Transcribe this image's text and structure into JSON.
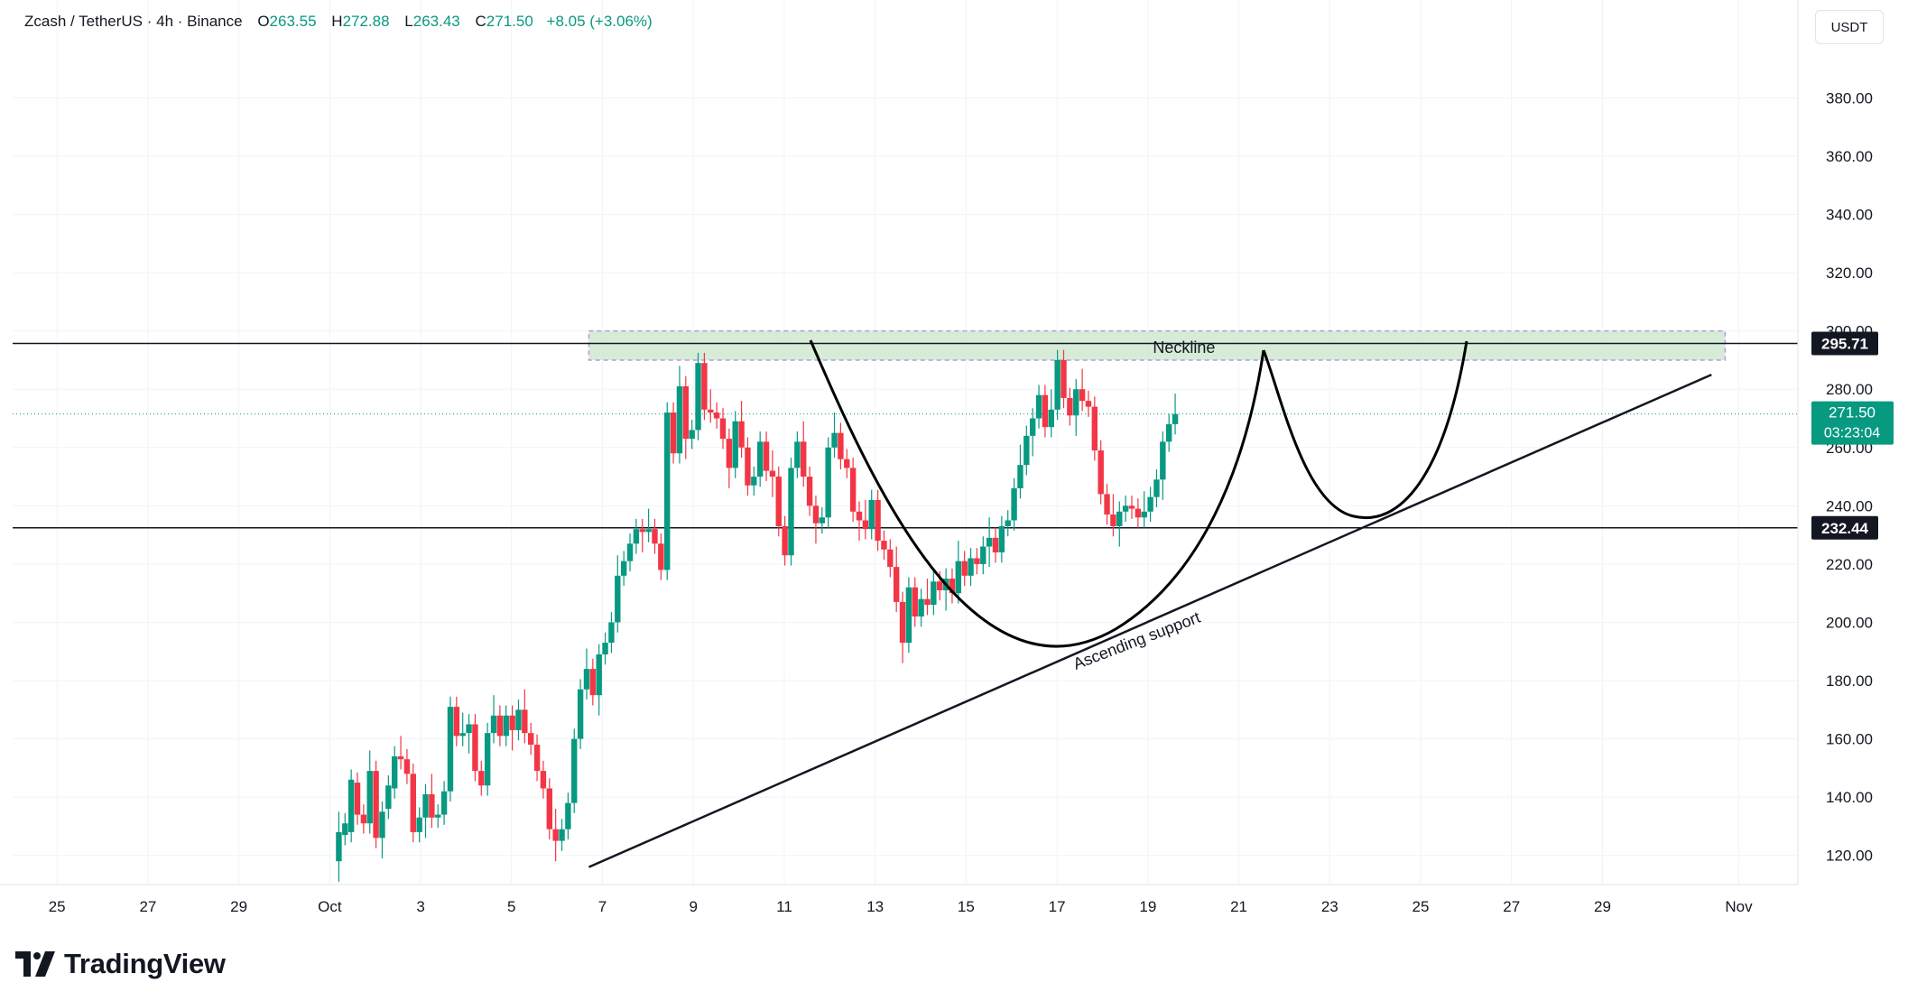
{
  "header": {
    "symbol": "Zcash / TetherUS · 4h · Binance",
    "open_label": "O",
    "open_value": "263.55",
    "high_label": "H",
    "high_value": "272.88",
    "low_label": "L",
    "low_value": "263.43",
    "close_label": "C",
    "close_value": "271.50",
    "change": "+8.05 (+3.06%)"
  },
  "currency_button": "USDT",
  "brand": {
    "name": "TradingView",
    "icon": "tradingview-logo-icon"
  },
  "colors": {
    "up": "#089981",
    "down": "#f23645",
    "zone_fill": "#c8e6c9",
    "zone_border": "#b39ddb",
    "line": "#131722"
  },
  "chart_data": {
    "type": "candlestick",
    "timeframe": "4h",
    "x_ticks": [
      "25",
      "27",
      "29",
      "Oct",
      "3",
      "5",
      "7",
      "9",
      "11",
      "13",
      "15",
      "17",
      "19",
      "21",
      "23",
      "25",
      "27",
      "29",
      "Nov"
    ],
    "y_ticks": [
      "120.00",
      "140.00",
      "160.00",
      "180.00",
      "200.00",
      "220.00",
      "240.00",
      "260.00",
      "280.00",
      "300.00",
      "320.00",
      "340.00",
      "360.00",
      "380.00"
    ],
    "ylim": [
      110,
      395
    ],
    "xlim_days_from_sep25": [
      -0.5,
      38.3
    ],
    "price_labels": [
      {
        "value": 295.71,
        "text": "295.71",
        "style": "dark"
      },
      {
        "value": 232.44,
        "text": "232.44",
        "style": "dark"
      },
      {
        "value": 271.5,
        "text": "271.50",
        "countdown": "03:23:04",
        "style": "up"
      }
    ],
    "horizontal_lines": [
      295.71,
      232.44
    ],
    "current_price": 271.5,
    "zone": {
      "label": "Neckline",
      "from": 290,
      "to": 300,
      "start": "Oct 6.2",
      "end": "Oct 31"
    },
    "annotations": [
      {
        "text": "Ascending support"
      }
    ],
    "trendline": {
      "from": {
        "day": 11.7,
        "price": 116
      },
      "to": {
        "day": 36.4,
        "price": 285
      }
    },
    "candle_walk": [
      [
        118,
        128
      ],
      [
        127,
        131
      ],
      [
        128,
        146
      ],
      [
        145,
        134
      ],
      [
        134,
        131
      ],
      [
        131,
        149
      ],
      [
        149,
        126
      ],
      [
        126,
        135
      ],
      [
        136,
        144
      ],
      [
        143,
        154
      ],
      [
        154,
        153
      ],
      [
        153,
        148
      ],
      [
        148,
        128
      ],
      [
        128,
        133
      ],
      [
        133,
        141
      ],
      [
        141,
        133
      ],
      [
        133,
        134
      ],
      [
        134,
        142
      ],
      [
        142,
        171
      ],
      [
        171,
        161
      ],
      [
        161,
        162
      ],
      [
        162,
        165
      ],
      [
        165,
        149
      ],
      [
        149,
        144
      ],
      [
        144,
        162
      ],
      [
        162,
        168
      ],
      [
        168,
        161
      ],
      [
        161,
        168
      ],
      [
        168,
        163
      ],
      [
        163,
        170
      ],
      [
        170,
        162
      ],
      [
        162,
        158
      ],
      [
        158,
        149
      ],
      [
        149,
        143
      ],
      [
        143,
        129
      ],
      [
        129,
        125
      ],
      [
        125,
        129
      ],
      [
        129,
        138
      ],
      [
        138,
        160
      ],
      [
        160,
        177
      ],
      [
        177,
        184
      ],
      [
        184,
        175
      ],
      [
        175,
        189
      ],
      [
        189,
        193
      ],
      [
        193,
        200
      ],
      [
        200,
        216
      ],
      [
        216,
        221
      ],
      [
        221,
        227
      ],
      [
        227,
        232
      ],
      [
        232,
        231
      ],
      [
        231,
        232
      ],
      [
        232,
        227
      ],
      [
        227,
        218
      ],
      [
        218,
        272
      ],
      [
        272,
        258
      ],
      [
        258,
        281
      ],
      [
        281,
        263
      ],
      [
        263,
        266
      ],
      [
        266,
        289
      ],
      [
        289,
        273
      ],
      [
        273,
        272
      ],
      [
        272,
        270
      ],
      [
        270,
        263
      ],
      [
        263,
        253
      ],
      [
        253,
        269
      ],
      [
        269,
        260
      ],
      [
        260,
        247
      ],
      [
        247,
        250
      ],
      [
        250,
        262
      ],
      [
        262,
        252
      ],
      [
        252,
        250
      ],
      [
        250,
        233
      ],
      [
        233,
        223
      ],
      [
        223,
        253
      ],
      [
        253,
        262
      ],
      [
        262,
        250
      ],
      [
        250,
        240
      ],
      [
        240,
        234
      ],
      [
        234,
        236
      ],
      [
        236,
        260
      ],
      [
        260,
        265
      ],
      [
        265,
        256
      ],
      [
        256,
        253
      ],
      [
        253,
        238
      ],
      [
        238,
        235
      ],
      [
        235,
        232
      ],
      [
        232,
        242
      ],
      [
        242,
        228
      ],
      [
        228,
        225
      ],
      [
        225,
        219
      ],
      [
        219,
        207
      ],
      [
        207,
        193
      ],
      [
        193,
        212
      ],
      [
        212,
        202
      ],
      [
        202,
        208
      ],
      [
        208,
        206
      ],
      [
        206,
        214
      ],
      [
        214,
        211
      ],
      [
        211,
        215
      ],
      [
        215,
        210
      ],
      [
        210,
        221
      ],
      [
        221,
        216
      ],
      [
        216,
        222
      ],
      [
        222,
        220
      ],
      [
        220,
        226
      ],
      [
        226,
        229
      ],
      [
        229,
        224
      ],
      [
        224,
        233
      ],
      [
        233,
        235
      ],
      [
        235,
        246
      ],
      [
        246,
        254
      ],
      [
        254,
        264
      ],
      [
        264,
        270
      ],
      [
        270,
        278
      ],
      [
        278,
        267
      ],
      [
        267,
        273
      ],
      [
        273,
        290
      ],
      [
        290,
        277
      ],
      [
        277,
        271
      ],
      [
        271,
        280
      ],
      [
        280,
        276
      ],
      [
        276,
        274
      ],
      [
        274,
        259
      ],
      [
        259,
        244
      ],
      [
        244,
        237
      ],
      [
        237,
        233
      ],
      [
        233,
        238
      ],
      [
        238,
        240
      ],
      [
        240,
        239
      ],
      [
        239,
        236
      ],
      [
        236,
        238
      ],
      [
        238,
        243
      ],
      [
        243,
        249
      ],
      [
        249,
        262
      ],
      [
        262,
        268
      ],
      [
        268,
        271.5
      ]
    ]
  }
}
